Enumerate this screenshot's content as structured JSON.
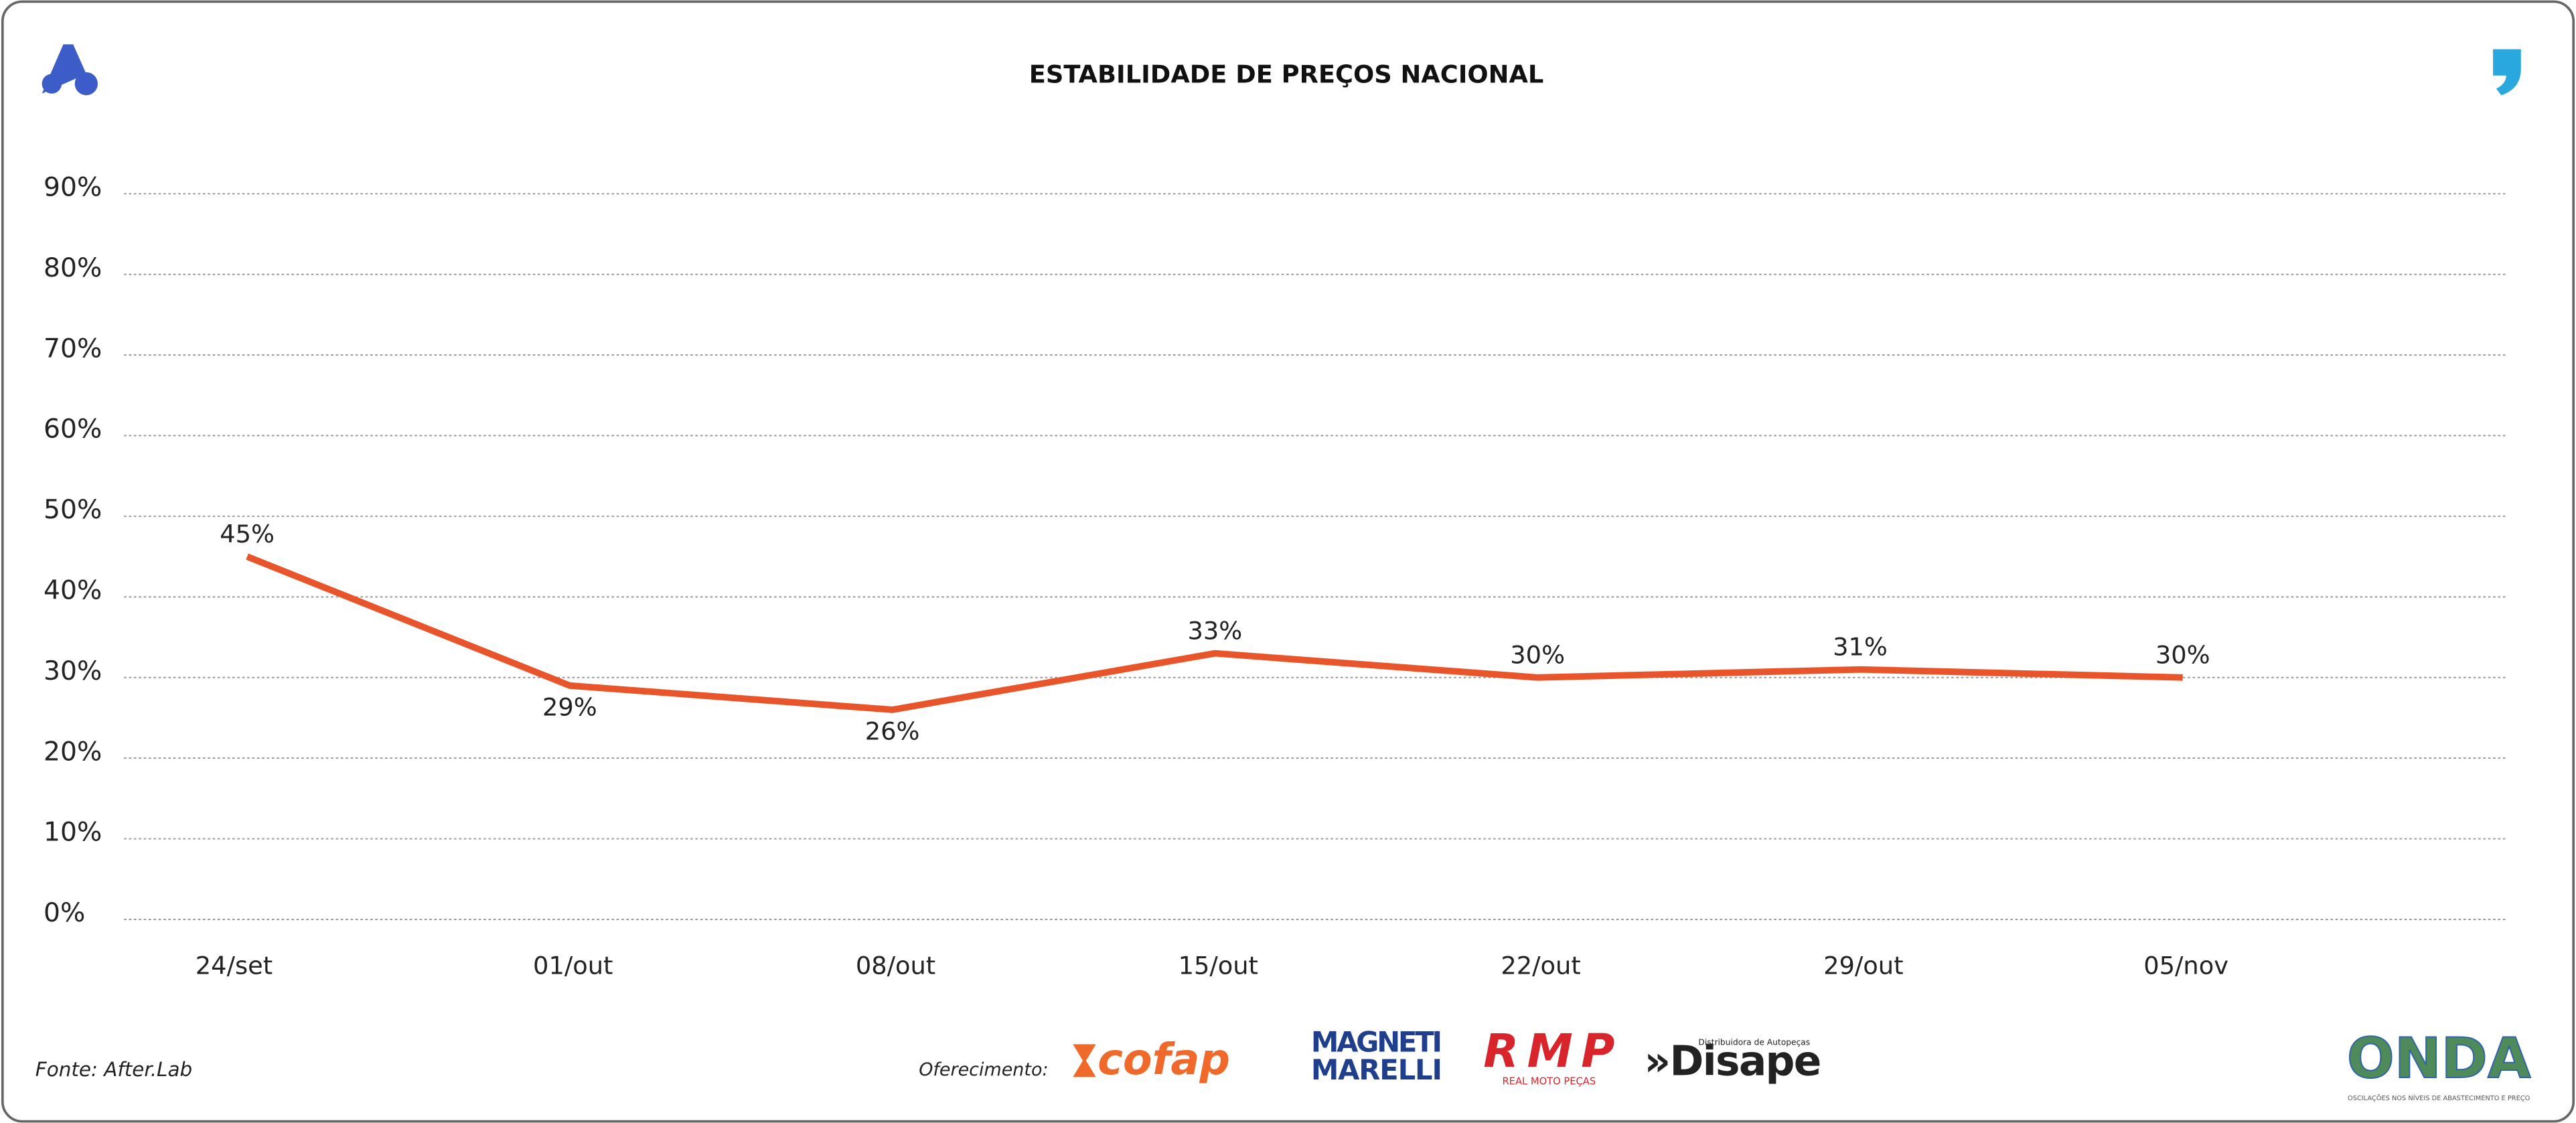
{
  "chart_data": {
    "type": "line",
    "title": "ESTABILIDADE DE PREÇOS NACIONAL",
    "categories": [
      "24/set",
      "01/out",
      "08/out",
      "15/out",
      "22/out",
      "29/out",
      "05/nov"
    ],
    "values": [
      45,
      29,
      26,
      33,
      30,
      31,
      30
    ],
    "value_labels": [
      "45%",
      "29%",
      "26%",
      "33%",
      "30%",
      "31%",
      "30%"
    ],
    "color": "#e8552b",
    "ylim": [
      0,
      90
    ],
    "yticks": [
      {
        "value": 0,
        "label": "0%"
      },
      {
        "value": 10,
        "label": "10%"
      },
      {
        "value": 20,
        "label": "20%"
      },
      {
        "value": 30,
        "label": "30%"
      },
      {
        "value": 40,
        "label": "40%"
      },
      {
        "value": 50,
        "label": "50%"
      },
      {
        "value": 60,
        "label": "60%"
      },
      {
        "value": 70,
        "label": "70%"
      },
      {
        "value": 80,
        "label": "80%"
      },
      {
        "value": 90,
        "label": "90%"
      }
    ],
    "grid": true
  },
  "footer": {
    "source": "Fonte: After.Lab",
    "sponsor_label": "Oferecimento:",
    "sponsors": [
      "cofap",
      "MAGNETI",
      "MARELLI",
      "RMP",
      "REAL MOTO PEÇAS",
      "Distribuidora de Autopeças",
      "»Disape"
    ],
    "brand": "ONDA",
    "brand_tagline": "OSCILAÇÕES NOS NÍVEIS DE ABASTECIMENTO E PREÇO"
  }
}
